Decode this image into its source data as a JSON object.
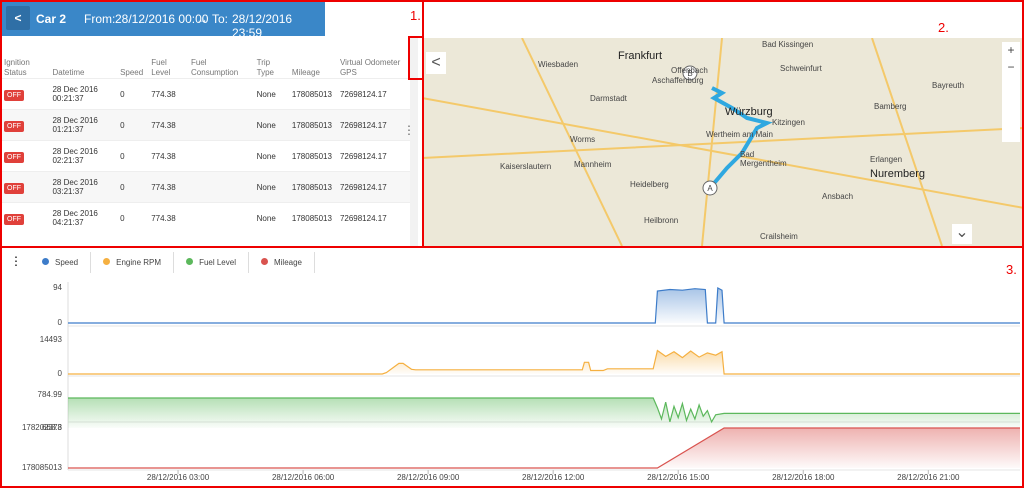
{
  "header": {
    "vehicle": "Car 2",
    "from_label": "From:",
    "from": "28/12/2016 00:00",
    "to_label": "To:",
    "to": "28/12/2016 23:59"
  },
  "annotations": [
    "1.",
    "2.",
    "3."
  ],
  "table": {
    "columns": [
      "Ignition Status",
      "Datetime",
      "Speed",
      "Fuel Level",
      "Fuel Consumption",
      "Trip Type",
      "Mileage",
      "Virtual Odometer GPS"
    ],
    "rows": [
      [
        "OFF",
        "28 Dec 2016 00:21:37",
        0,
        774.38,
        null,
        "None",
        178085013,
        72698124.17
      ],
      [
        "OFF",
        "28 Dec 2016 01:21:37",
        0,
        774.38,
        null,
        "None",
        178085013,
        72698124.17
      ],
      [
        "OFF",
        "28 Dec 2016 02:21:37",
        0,
        774.38,
        null,
        "None",
        178085013,
        72698124.17
      ],
      [
        "OFF",
        "28 Dec 2016 03:21:37",
        0,
        774.38,
        null,
        "None",
        178085013,
        72698124.17
      ],
      [
        "OFF",
        "28 Dec 2016 04:21:37",
        0,
        774.38,
        null,
        "None",
        178085013,
        72698124.17
      ]
    ]
  },
  "map": {
    "places": [
      "Frankfurt",
      "Offenbach",
      "Wiesbaden",
      "Aschaffenburg",
      "Darmstadt",
      "Würzburg",
      "Worms",
      "Wertheim am Main",
      "Mannheim",
      "Kaiserslautern",
      "Heidelberg",
      "Heilbronn",
      "Nuremberg",
      "Erlangen",
      "Bamberg",
      "Schweinfurt",
      "Bad Kissingen",
      "Bayreuth",
      "Kitzingen",
      "Ansbach",
      "Crailsheim",
      "Bad Mergentheim"
    ]
  },
  "chart_data": {
    "type": "line",
    "xlim": [
      0.36,
      23.2
    ],
    "xticks": [
      {
        "value": 3,
        "label": "28/12/2016 03:00"
      },
      {
        "value": 6,
        "label": "28/12/2016 06:00"
      },
      {
        "value": 9,
        "label": "28/12/2016 09:00"
      },
      {
        "value": 12,
        "label": "28/12/2016 12:00"
      },
      {
        "value": 15,
        "label": "28/12/2016 15:00"
      },
      {
        "value": 18,
        "label": "28/12/2016 18:00"
      },
      {
        "value": 21,
        "label": "28/12/2016 21:00"
      }
    ],
    "series": [
      {
        "name": "Speed",
        "color": "#3d7cc9",
        "ylim": [
          0,
          94
        ],
        "yticks": [
          0,
          94
        ],
        "x": [
          0.36,
          14.45,
          14.5,
          14.8,
          15.1,
          15.4,
          15.65,
          15.7,
          15.9,
          15.95,
          16.05,
          16.1,
          23.2
        ],
        "values": [
          0,
          0,
          86,
          90,
          88,
          92,
          90,
          0,
          0,
          94,
          88,
          0,
          0
        ]
      },
      {
        "name": "Engine RPM",
        "color": "#f5b041",
        "ylim": [
          0,
          14493
        ],
        "yticks": [
          0,
          14493
        ],
        "x": [
          0.36,
          7.9,
          8.0,
          8.3,
          8.4,
          8.6,
          8.7,
          12.7,
          12.75,
          12.85,
          12.9,
          13.2,
          13.3,
          14.4,
          14.5,
          14.7,
          14.9,
          15.1,
          15.3,
          15.5,
          15.7,
          15.9,
          16.05,
          16.1,
          23.2
        ],
        "values": [
          0,
          0,
          600,
          4500,
          4500,
          2000,
          1800,
          1800,
          5000,
          5000,
          1500,
          1500,
          2200,
          2200,
          10000,
          7500,
          9500,
          7000,
          9800,
          7200,
          9000,
          8000,
          9500,
          0,
          0
        ]
      },
      {
        "name": "Fuel Level",
        "color": "#5cb85c",
        "ylim": [
          668.3,
          784.99
        ],
        "yticks": [
          668.3,
          784.99
        ],
        "x": [
          0.36,
          14.4,
          14.5,
          14.6,
          14.7,
          14.8,
          14.9,
          15.0,
          15.1,
          15.2,
          15.3,
          15.4,
          15.5,
          15.6,
          15.7,
          15.8,
          15.9,
          16.1,
          23.2
        ],
        "values": [
          774.38,
          774.38,
          740,
          700,
          760,
          690,
          745,
          705,
          755,
          695,
          735,
          700,
          750,
          710,
          730,
          690,
          715,
          720,
          720
        ]
      },
      {
        "name": "Mileage",
        "color": "#d9534f",
        "ylim": [
          178085013,
          178202378
        ],
        "yticks": [
          178085013,
          178202378
        ],
        "x": [
          0.36,
          14.5,
          16.1,
          23.2
        ],
        "values": [
          178085013,
          178085013,
          178202378,
          178202378
        ]
      }
    ]
  }
}
